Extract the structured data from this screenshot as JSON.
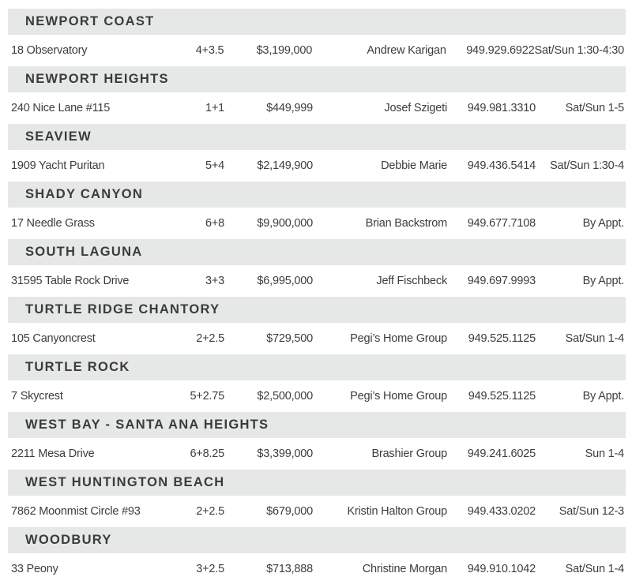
{
  "page": {
    "kind": "open-house-listings-directory",
    "background": "#ffffff"
  },
  "colors": {
    "section_header_bg": "#e5e8e7",
    "section_header_text": "#3b3b3b",
    "row_text": "#3d3d3d"
  },
  "columns": [
    "address",
    "beds_baths",
    "price",
    "agent",
    "phone",
    "open_times"
  ],
  "sections": [
    {
      "name": "NEWPORT COAST",
      "listing": {
        "address": "18 Observatory",
        "beds_baths": "4+3.5",
        "price": "$3,199,000",
        "agent": "Andrew Karigan",
        "phone": "949.929.6922",
        "open_times": "Sat/Sun 1:30-4:30"
      }
    },
    {
      "name": "NEWPORT HEIGHTS",
      "listing": {
        "address": "240 Nice Lane #115",
        "beds_baths": "1+1",
        "price": "$449,999",
        "agent": "Josef Szigeti",
        "phone": "949.981.3310",
        "open_times": "Sat/Sun 1-5"
      }
    },
    {
      "name": "SEAVIEW",
      "listing": {
        "address": "1909 Yacht Puritan",
        "beds_baths": "5+4",
        "price": "$2,149,900",
        "agent": "Debbie Marie",
        "phone": "949.436.5414",
        "open_times": "Sat/Sun 1:30-4"
      }
    },
    {
      "name": "SHADY CANYON",
      "listing": {
        "address": "17 Needle Grass",
        "beds_baths": "6+8",
        "price": "$9,900,000",
        "agent": "Brian Backstrom",
        "phone": "949.677.7108",
        "open_times": "By Appt."
      }
    },
    {
      "name": "SOUTH LAGUNA",
      "listing": {
        "address": "31595 Table Rock Drive",
        "beds_baths": "3+3",
        "price": "$6,995,000",
        "agent": "Jeff Fischbeck",
        "phone": "949.697.9993",
        "open_times": "By Appt."
      }
    },
    {
      "name": "TURTLE RIDGE CHANTORY",
      "listing": {
        "address": "105 Canyoncrest",
        "beds_baths": "2+2.5",
        "price": "$729,500",
        "agent": "Pegi’s Home Group",
        "phone": "949.525.1125",
        "open_times": "Sat/Sun 1-4"
      }
    },
    {
      "name": "TURTLE ROCK",
      "listing": {
        "address": "7 Skycrest",
        "beds_baths": "5+2.75",
        "price": "$2,500,000",
        "agent": "Pegi’s Home Group",
        "phone": "949.525.1125",
        "open_times": "By Appt."
      }
    },
    {
      "name": "WEST BAY - SANTA ANA HEIGHTS",
      "listing": {
        "address": "2211 Mesa Drive",
        "beds_baths": "6+8.25",
        "price": "$3,399,000",
        "agent": "Brashier Group",
        "phone": "949.241.6025",
        "open_times": "Sun 1-4"
      }
    },
    {
      "name": "WEST HUNTINGTON BEACH",
      "listing": {
        "address": "7862 Moonmist Circle #93",
        "beds_baths": "2+2.5",
        "price": "$679,000",
        "agent": "Kristin Halton Group",
        "phone": "949.433.0202",
        "open_times": "Sat/Sun 12-3"
      }
    },
    {
      "name": "WOODBURY",
      "listing": {
        "address": "33 Peony",
        "beds_baths": "3+2.5",
        "price": "$713,888",
        "agent": "Christine Morgan",
        "phone": "949.910.1042",
        "open_times": "Sat/Sun 1-4"
      }
    }
  ]
}
